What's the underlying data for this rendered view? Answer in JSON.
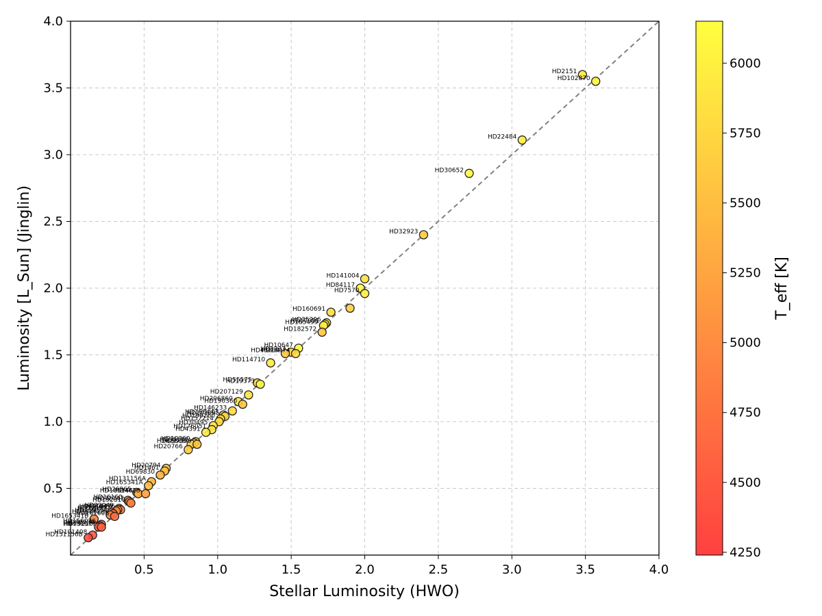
{
  "chart_data": {
    "type": "scatter",
    "title": "",
    "xlabel": "Stellar Luminosity (HWO)",
    "ylabel": "Luminosity [L_Sun] (Jinglin)",
    "xlim": [
      0.0,
      4.0
    ],
    "ylim": [
      0.0,
      4.0
    ],
    "x_ticks": [
      "0.5",
      "1.0",
      "1.5",
      "2.0",
      "2.5",
      "3.0",
      "3.5",
      "4.0"
    ],
    "y_ticks": [
      "0.5",
      "1.0",
      "1.5",
      "2.0",
      "2.5",
      "3.0",
      "3.5",
      "4.0"
    ],
    "grid": true,
    "reference_line": "y = x (dashed gray)",
    "colorbar": {
      "label": "T_eff [K]",
      "min": 4240,
      "max": 6150,
      "ticks": [
        "4250",
        "4500",
        "4750",
        "5000",
        "5250",
        "5500",
        "5750",
        "6000"
      ],
      "low_color": "#ff4040",
      "high_color": "#ffff40"
    },
    "points": [
      {
        "label": "HD2151",
        "x": 3.48,
        "y": 3.6,
        "teff": 5900
      },
      {
        "label": "HD102870",
        "x": 3.57,
        "y": 3.55,
        "teff": 6050
      },
      {
        "label": "HD22484",
        "x": 3.07,
        "y": 3.11,
        "teff": 5950
      },
      {
        "label": "HD30652",
        "x": 2.71,
        "y": 2.86,
        "teff": 6100
      },
      {
        "label": "HD32923",
        "x": 2.4,
        "y": 2.4,
        "teff": 5650
      },
      {
        "label": "HD141004",
        "x": 2.0,
        "y": 2.07,
        "teff": 5850
      },
      {
        "label": "HD84117",
        "x": 1.97,
        "y": 2.0,
        "teff": 6100
      },
      {
        "label": "HD7570",
        "x": 2.0,
        "y": 1.96,
        "teff": 6000
      },
      {
        "label": "",
        "x": 1.9,
        "y": 1.85,
        "teff": 5650
      },
      {
        "label": "HD160691",
        "x": 1.77,
        "y": 1.82,
        "teff": 5800
      },
      {
        "label": "HD35296",
        "x": 1.74,
        "y": 1.74,
        "teff": 6050
      },
      {
        "label": "HD17051",
        "x": 1.73,
        "y": 1.73,
        "teff": 6100
      },
      {
        "label": "HD165499",
        "x": 1.72,
        "y": 1.72,
        "teff": 5950
      },
      {
        "label": "HD182572",
        "x": 1.71,
        "y": 1.67,
        "teff": 5550
      },
      {
        "label": "HD10647",
        "x": 1.55,
        "y": 1.55,
        "teff": 6100
      },
      {
        "label": "HD1237",
        "x": 1.5,
        "y": 1.52,
        "teff": 5700
      },
      {
        "label": "HD43834",
        "x": 1.46,
        "y": 1.51,
        "teff": 5600
      },
      {
        "label": "HD13974",
        "x": 1.53,
        "y": 1.51,
        "teff": 5800
      },
      {
        "label": "HD114710",
        "x": 1.36,
        "y": 1.44,
        "teff": 5950
      },
      {
        "label": "HD55575",
        "x": 1.27,
        "y": 1.29,
        "teff": 5850
      },
      {
        "label": "HD19373",
        "x": 1.29,
        "y": 1.28,
        "teff": 6050
      },
      {
        "label": "HD207129",
        "x": 1.21,
        "y": 1.2,
        "teff": 5900
      },
      {
        "label": "HD206860",
        "x": 1.14,
        "y": 1.15,
        "teff": 5950
      },
      {
        "label": "HD190360",
        "x": 1.17,
        "y": 1.13,
        "teff": 5550
      },
      {
        "label": "HD146233",
        "x": 1.1,
        "y": 1.08,
        "teff": 5800
      },
      {
        "label": "HD168443",
        "x": 1.04,
        "y": 1.05,
        "teff": 5650
      },
      {
        "label": "HD103095",
        "x": 1.05,
        "y": 1.04,
        "teff": 5700
      },
      {
        "label": "HD199260",
        "x": 1.02,
        "y": 1.02,
        "teff": 5750
      },
      {
        "label": "HD157214",
        "x": 1.01,
        "y": 1.0,
        "teff": 5800
      },
      {
        "label": "HD30495",
        "x": 0.97,
        "y": 0.97,
        "teff": 5850
      },
      {
        "label": "HD176051",
        "x": 0.96,
        "y": 0.94,
        "teff": 5900
      },
      {
        "label": "HD4391",
        "x": 0.92,
        "y": 0.92,
        "teff": 5950
      },
      {
        "label": "HD10360",
        "x": 0.85,
        "y": 0.85,
        "teff": 5600
      },
      {
        "label": "HD35112",
        "x": 0.84,
        "y": 0.84,
        "teff": 5550
      },
      {
        "label": "HD68808",
        "x": 0.82,
        "y": 0.83,
        "teff": 5750
      },
      {
        "label": "HD37559",
        "x": 0.86,
        "y": 0.83,
        "teff": 5600
      },
      {
        "label": "HD20766",
        "x": 0.8,
        "y": 0.79,
        "teff": 5650
      },
      {
        "label": "HD20794",
        "x": 0.65,
        "y": 0.65,
        "teff": 5450
      },
      {
        "label": "HD1461",
        "x": 0.64,
        "y": 0.63,
        "teff": 5550
      },
      {
        "label": "HD69830",
        "x": 0.61,
        "y": 0.6,
        "teff": 5400
      },
      {
        "label": "HD131156A",
        "x": 0.55,
        "y": 0.55,
        "teff": 5450
      },
      {
        "label": "HD165341A",
        "x": 0.53,
        "y": 0.52,
        "teff": 5500
      },
      {
        "label": "HD26965",
        "x": 0.45,
        "y": 0.47,
        "teff": 5250
      },
      {
        "label": "HD185144",
        "x": 0.46,
        "y": 0.46,
        "teff": 5350
      },
      {
        "label": "HD4628",
        "x": 0.51,
        "y": 0.46,
        "teff": 5200
      },
      {
        "label": "HD16160",
        "x": 0.39,
        "y": 0.41,
        "teff": 5050
      },
      {
        "label": "HD32147",
        "x": 0.4,
        "y": 0.4,
        "teff": 5000
      },
      {
        "label": "HD192310",
        "x": 0.41,
        "y": 0.39,
        "teff": 4850
      },
      {
        "label": "HD22049",
        "x": 0.33,
        "y": 0.35,
        "teff": 5100
      },
      {
        "label": "HD10476",
        "x": 0.34,
        "y": 0.34,
        "teff": 4950
      },
      {
        "label": "HD100623",
        "x": 0.32,
        "y": 0.34,
        "teff": 4900
      },
      {
        "label": "HD125072",
        "x": 0.31,
        "y": 0.33,
        "teff": 4950
      },
      {
        "label": "HD72673",
        "x": 0.28,
        "y": 0.32,
        "teff": 4850
      },
      {
        "label": "HD219134",
        "x": 0.29,
        "y": 0.31,
        "teff": 4750
      },
      {
        "label": "HD166620",
        "x": 0.27,
        "y": 0.3,
        "teff": 4850
      },
      {
        "label": "HD16160B",
        "x": 0.3,
        "y": 0.29,
        "teff": 4700
      },
      {
        "label": "HD165341B",
        "x": 0.16,
        "y": 0.27,
        "teff": 4900
      },
      {
        "label": "HD156026",
        "x": 0.21,
        "y": 0.23,
        "teff": 4600
      },
      {
        "label": "HD88230",
        "x": 0.2,
        "y": 0.22,
        "teff": 4650
      },
      {
        "label": "HD79210",
        "x": 0.19,
        "y": 0.21,
        "teff": 4550
      },
      {
        "label": "HD131977",
        "x": 0.21,
        "y": 0.21,
        "teff": 4600
      },
      {
        "label": "HD191408",
        "x": 0.15,
        "y": 0.15,
        "teff": 4450
      },
      {
        "label": "HD131156B",
        "x": 0.12,
        "y": 0.13,
        "teff": 4350
      }
    ]
  }
}
